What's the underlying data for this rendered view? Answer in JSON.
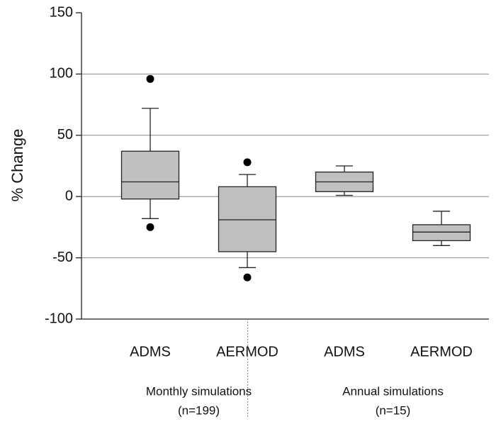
{
  "chart_data": {
    "type": "box",
    "y_label": "% Change",
    "categories": [
      "ADMS",
      "AERMOD",
      "ADMS",
      "AERMOD"
    ],
    "groups": [
      [
        "Monthly simulations",
        "(n=199)"
      ],
      [
        "Annual simulations",
        "(n=15)"
      ]
    ],
    "boxes": [
      {
        "whisker_low": -18,
        "q1": -2,
        "median": 12,
        "q3": 37,
        "whisker_high": 72,
        "outliers": [
          96,
          -25
        ]
      },
      {
        "whisker_low": -58,
        "q1": -45,
        "median": -19,
        "q3": 8,
        "whisker_high": 18,
        "outliers": [
          28,
          -66
        ]
      },
      {
        "whisker_low": 1,
        "q1": 4,
        "median": 12,
        "q3": 20,
        "whisker_high": 25,
        "outliers": []
      },
      {
        "whisker_low": -40,
        "q1": -36,
        "median": -29,
        "q3": -23,
        "whisker_high": -12,
        "outliers": []
      }
    ],
    "color": "#c0c0c0",
    "ylim": [
      -100,
      150
    ],
    "yticks": [
      -100,
      -50,
      0,
      50,
      100,
      150
    ],
    "grid": true
  }
}
